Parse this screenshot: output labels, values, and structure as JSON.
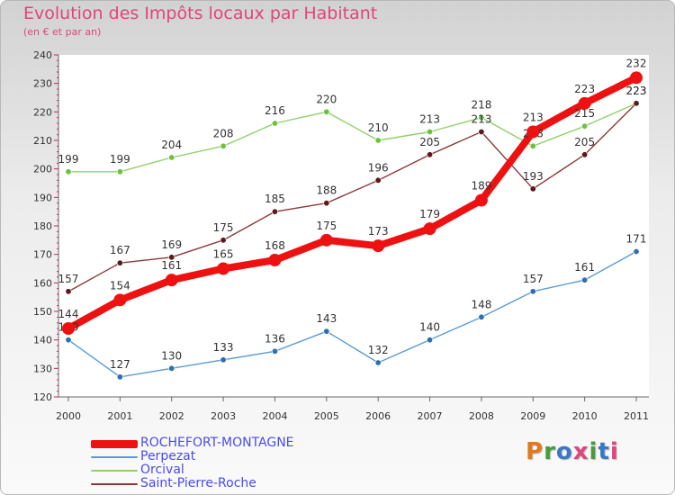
{
  "header": {
    "title": "Evolution des Impôts locaux par Habitant",
    "subtitle": "(en € et par an)"
  },
  "logo": {
    "letters": [
      "P",
      "r",
      "o",
      "x",
      "i",
      "t",
      "i"
    ]
  },
  "colors": {
    "axis_text": "#333333",
    "grid": "#dddddd",
    "logo": [
      "#e07a1f",
      "#4a9a3c",
      "#3a78c4",
      "#e0457b",
      "#4a9a3c",
      "#3a78c4",
      "#e0457b"
    ]
  },
  "chart_data": {
    "type": "line",
    "title": "Evolution des Impôts locaux par Habitant",
    "subtitle": "(en € et par an)",
    "xlabel": "",
    "ylabel": "",
    "categories": [
      "2000",
      "2001",
      "2002",
      "2003",
      "2004",
      "2005",
      "2006",
      "2007",
      "2008",
      "2009",
      "2010",
      "2011"
    ],
    "ylim": [
      120,
      240
    ],
    "yticks": [
      120,
      130,
      140,
      150,
      160,
      170,
      180,
      190,
      200,
      210,
      220,
      230,
      240
    ],
    "grid": false,
    "legend_position": "bottom-left",
    "series": [
      {
        "name": "Perpezat",
        "color": "#5b9bd5",
        "point_color": "#2e6fb0",
        "thick": false,
        "values": [
          140,
          127,
          130,
          133,
          136,
          143,
          132,
          140,
          148,
          157,
          161,
          171
        ],
        "labels": [
          "140",
          "127",
          "130",
          "133",
          "136",
          "143",
          "132",
          "140",
          "148",
          "157",
          "161",
          "171"
        ]
      },
      {
        "name": "Orcival",
        "color": "#90d06a",
        "point_color": "#6cc23e",
        "thick": false,
        "values": [
          199,
          199,
          204,
          208,
          216,
          220,
          210,
          213,
          218,
          208,
          215,
          223
        ],
        "labels": [
          "199",
          "199",
          "204",
          "208",
          "216",
          "220",
          "210",
          "213",
          "218",
          "208",
          "215",
          "223"
        ]
      },
      {
        "name": "Saint-Pierre-Roche",
        "color": "#8a3a3a",
        "point_color": "#5a1a1a",
        "thick": false,
        "values": [
          157,
          167,
          169,
          175,
          185,
          188,
          196,
          205,
          213,
          193,
          205,
          223
        ],
        "labels": [
          "157",
          "167",
          "169",
          "175",
          "185",
          "188",
          "196",
          "205",
          "213",
          "193",
          "205",
          "223"
        ]
      },
      {
        "name": "ROCHEFORT-MONTAGNE",
        "color": "#ee1111",
        "point_color": "#ee1111",
        "thick": true,
        "values": [
          144,
          154,
          161,
          165,
          168,
          175,
          173,
          179,
          189,
          213,
          223,
          232
        ],
        "labels": [
          "144",
          "154",
          "161",
          "165",
          "168",
          "175",
          "173",
          "179",
          "189",
          "213",
          "223",
          "232"
        ]
      }
    ],
    "legend": [
      {
        "name": "ROCHEFORT-MONTAGNE",
        "color": "#ee1111",
        "text_color": "#4a4aee",
        "thick": true
      },
      {
        "name": "Perpezat",
        "color": "#5b9bd5",
        "text_color": "#4a4aee",
        "thick": false
      },
      {
        "name": "Orcival",
        "color": "#90d06a",
        "text_color": "#4a4aee",
        "thick": false
      },
      {
        "name": "Saint-Pierre-Roche",
        "color": "#8a3a3a",
        "text_color": "#4a4aee",
        "thick": false
      }
    ]
  }
}
